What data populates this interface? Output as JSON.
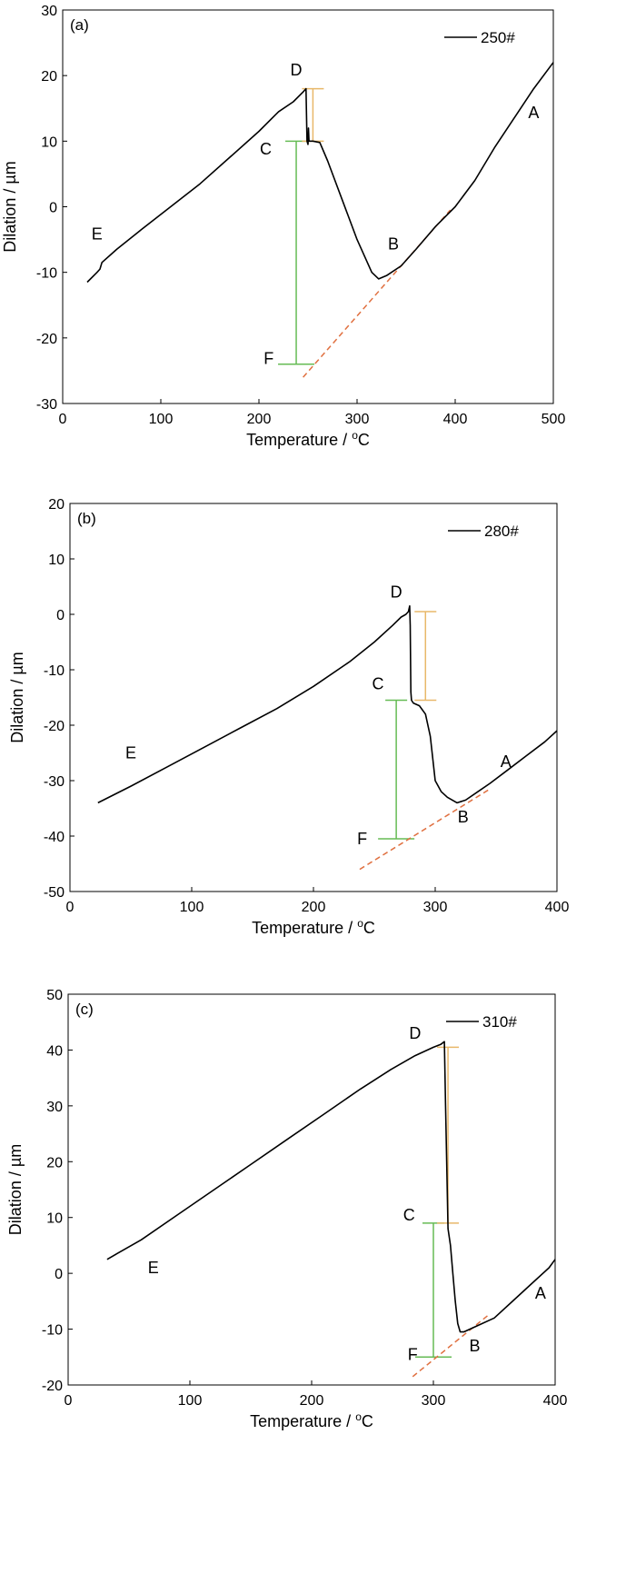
{
  "chart_data": [
    {
      "type": "line",
      "panel_label": "(a)",
      "xlabel": "Temperature / °C",
      "xlabel_main": "Temperature / ",
      "xlabel_sup": "o",
      "xlabel_end": "C",
      "ylabel": "Dilation / µm",
      "xlim": [
        0,
        500
      ],
      "ylim": [
        -30,
        30
      ],
      "xticks": [
        0,
        100,
        200,
        300,
        400,
        500
      ],
      "yticks": [
        -30,
        -20,
        -10,
        0,
        10,
        20,
        30
      ],
      "grid": false,
      "legend_position": "top-right",
      "series": [
        {
          "name": "250#",
          "color": "#000000",
          "x": [
            25,
            35,
            38,
            40,
            55,
            80,
            110,
            140,
            170,
            200,
            220,
            235,
            245,
            248,
            249,
            250,
            250.5,
            251,
            255,
            262,
            270,
            285,
            300,
            315,
            322,
            330,
            345,
            360,
            380,
            400,
            420,
            440,
            460,
            480,
            500
          ],
          "y": [
            -11.5,
            -10,
            -9.5,
            -8.5,
            -6.5,
            -3.5,
            0,
            3.5,
            7.5,
            11.5,
            14.5,
            16,
            17.5,
            18,
            10,
            9.5,
            12,
            10,
            10,
            9.8,
            7,
            1,
            -5,
            -10,
            -11,
            -10.5,
            -9,
            -6.5,
            -3,
            0,
            4,
            9,
            13.5,
            18,
            22
          ]
        }
      ],
      "annotations": [
        {
          "text": "A",
          "x": 480,
          "y": 13.5
        },
        {
          "text": "B",
          "x": 337,
          "y": -6.5
        },
        {
          "text": "C",
          "x": 207,
          "y": 8
        },
        {
          "text": "D",
          "x": 238,
          "y": 20
        },
        {
          "text": "E",
          "x": 35,
          "y": -5
        },
        {
          "text": "F",
          "x": 210,
          "y": -24
        }
      ],
      "dashed_line": {
        "color": "#e07040",
        "x": [
          245,
          395
        ],
        "y": [
          -26,
          -0.5
        ]
      },
      "yellow_bracket": {
        "color": "#e8b86a",
        "x": 255,
        "y1": 10,
        "y2": 18
      },
      "green_bracket": {
        "color": "#66bb55",
        "x": 238,
        "y1": -24,
        "y2": 10
      }
    },
    {
      "type": "line",
      "panel_label": "(b)",
      "xlabel": "Temperature / °C",
      "xlabel_main": "Temperature / ",
      "xlabel_sup": "o",
      "xlabel_end": "C",
      "ylabel": "Dilation / µm",
      "xlim": [
        0,
        400
      ],
      "ylim": [
        -50,
        20
      ],
      "xticks": [
        0,
        100,
        200,
        300,
        400
      ],
      "yticks": [
        -50,
        -40,
        -30,
        -20,
        -10,
        0,
        10,
        20
      ],
      "grid": false,
      "legend_position": "top-right",
      "series": [
        {
          "name": "280#",
          "color": "#000000",
          "x": [
            23,
            50,
            80,
            110,
            140,
            170,
            200,
            230,
            250,
            265,
            272,
            276,
            278,
            279,
            279.5,
            280,
            280.5,
            282,
            287,
            292,
            296,
            300,
            305,
            310,
            318,
            325,
            335,
            345,
            360,
            375,
            390,
            400
          ],
          "y": [
            -34,
            -31,
            -27.5,
            -24,
            -20.5,
            -17,
            -13,
            -8.5,
            -5,
            -2,
            -0.5,
            0,
            0.5,
            1.5,
            -2,
            -14,
            -15.5,
            -16,
            -16.5,
            -18,
            -22,
            -30,
            -32,
            -33,
            -34,
            -33.5,
            -32,
            -30.5,
            -28,
            -25.5,
            -23,
            -21
          ]
        }
      ],
      "annotations": [
        {
          "text": "A",
          "x": 358,
          "y": -27.5
        },
        {
          "text": "B",
          "x": 323,
          "y": -37.5
        },
        {
          "text": "C",
          "x": 253,
          "y": -13.5
        },
        {
          "text": "D",
          "x": 268,
          "y": 3
        },
        {
          "text": "E",
          "x": 50,
          "y": -26
        },
        {
          "text": "F",
          "x": 240,
          "y": -41.5
        }
      ],
      "dashed_line": {
        "color": "#e07040",
        "x": [
          238,
          345
        ],
        "y": [
          -46,
          -31.5
        ]
      },
      "yellow_bracket": {
        "color": "#e8b86a",
        "x": 292,
        "y1": -15.5,
        "y2": 0.5
      },
      "green_bracket": {
        "color": "#66bb55",
        "x": 268,
        "y1": -40.5,
        "y2": -15.5
      }
    },
    {
      "type": "line",
      "panel_label": "(c)",
      "xlabel": "Temperature / °C",
      "xlabel_main": "Temperature / ",
      "xlabel_sup": "o",
      "xlabel_end": "C",
      "ylabel": "Dilation / µm",
      "xlim": [
        0,
        400
      ],
      "ylim": [
        -20,
        50
      ],
      "xticks": [
        0,
        100,
        200,
        300,
        400
      ],
      "yticks": [
        -20,
        -10,
        0,
        10,
        20,
        30,
        40,
        50
      ],
      "grid": false,
      "legend_position": "top-right",
      "series": [
        {
          "name": "310#",
          "color": "#000000",
          "x": [
            32,
            40,
            60,
            90,
            120,
            150,
            180,
            210,
            240,
            265,
            285,
            300,
            306,
            309,
            310,
            312,
            314,
            316,
            318,
            320,
            322,
            325,
            335,
            350,
            365,
            380,
            395,
            400
          ],
          "y": [
            2.5,
            3.5,
            6,
            10.5,
            15,
            19.5,
            24,
            28.5,
            33,
            36.5,
            39,
            40.5,
            41,
            41.5,
            30,
            8,
            5,
            0,
            -5,
            -9,
            -10.5,
            -10.5,
            -9.5,
            -8,
            -5,
            -2,
            1,
            2.5
          ]
        }
      ],
      "annotations": [
        {
          "text": "A",
          "x": 388,
          "y": -4.5
        },
        {
          "text": "B",
          "x": 334,
          "y": -14
        },
        {
          "text": "C",
          "x": 280,
          "y": 9.5
        },
        {
          "text": "D",
          "x": 285,
          "y": 42
        },
        {
          "text": "E",
          "x": 70,
          "y": 0
        },
        {
          "text": "F",
          "x": 283,
          "y": -15.5
        }
      ],
      "dashed_line": {
        "color": "#e07040",
        "x": [
          283,
          345
        ],
        "y": [
          -18.5,
          -7.5
        ]
      },
      "yellow_bracket": {
        "color": "#e8b86a",
        "x": 312,
        "y1": 9,
        "y2": 40.5
      },
      "green_bracket": {
        "color": "#66bb55",
        "x": 300,
        "y1": -15,
        "y2": 9
      }
    }
  ]
}
